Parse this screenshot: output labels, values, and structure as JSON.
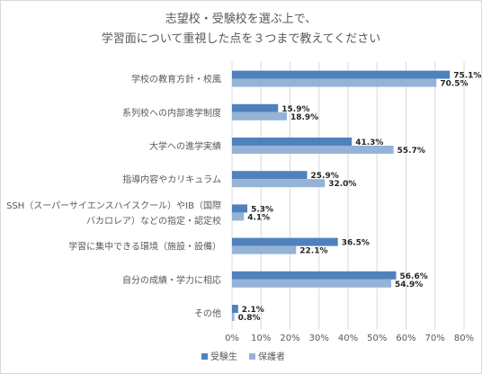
{
  "chart_data": {
    "type": "bar",
    "orientation": "horizontal",
    "title_lines": [
      "志望校・受験校を選ぶ上で、",
      "学習面について重視した点を３つまで教えてください"
    ],
    "categories": [
      [
        "学校の教育方針・校風"
      ],
      [
        "系列校への内部進学制度"
      ],
      [
        "大学への進学実績"
      ],
      [
        "指導内容やカリキュラム"
      ],
      [
        "SSH（スーパーサイエンスハイスクール）やIB（国際",
        "バカロレア）などの指定・認定校"
      ],
      [
        "学習に集中できる環境（施設・設備）"
      ],
      [
        "自分の成績・学力に相応"
      ],
      [
        "その他"
      ]
    ],
    "series": [
      {
        "name": "受験生",
        "color": "#4f81bd",
        "values": [
          75.1,
          15.9,
          41.3,
          25.9,
          5.3,
          36.5,
          56.6,
          2.1
        ]
      },
      {
        "name": "保護者",
        "color": "#95b3d7",
        "values": [
          70.5,
          18.9,
          55.7,
          32.0,
          4.1,
          22.1,
          54.9,
          0.8
        ]
      }
    ],
    "value_labels": [
      [
        "75.1%",
        "15.9%",
        "41.3%",
        "25.9%",
        "5.3%",
        "36.5%",
        "56.6%",
        "2.1%"
      ],
      [
        "70.5%",
        "18.9%",
        "55.7%",
        "32.0%",
        "4.1%",
        "22.1%",
        "54.9%",
        "0.8%"
      ]
    ],
    "x_ticks": [
      0,
      10,
      20,
      30,
      40,
      50,
      60,
      70,
      80
    ],
    "x_tick_labels": [
      "0%",
      "10%",
      "20%",
      "30%",
      "40%",
      "50%",
      "60%",
      "70%",
      "80%"
    ],
    "xlim": [
      0,
      80
    ],
    "grid": true,
    "legend_position": "bottom"
  }
}
